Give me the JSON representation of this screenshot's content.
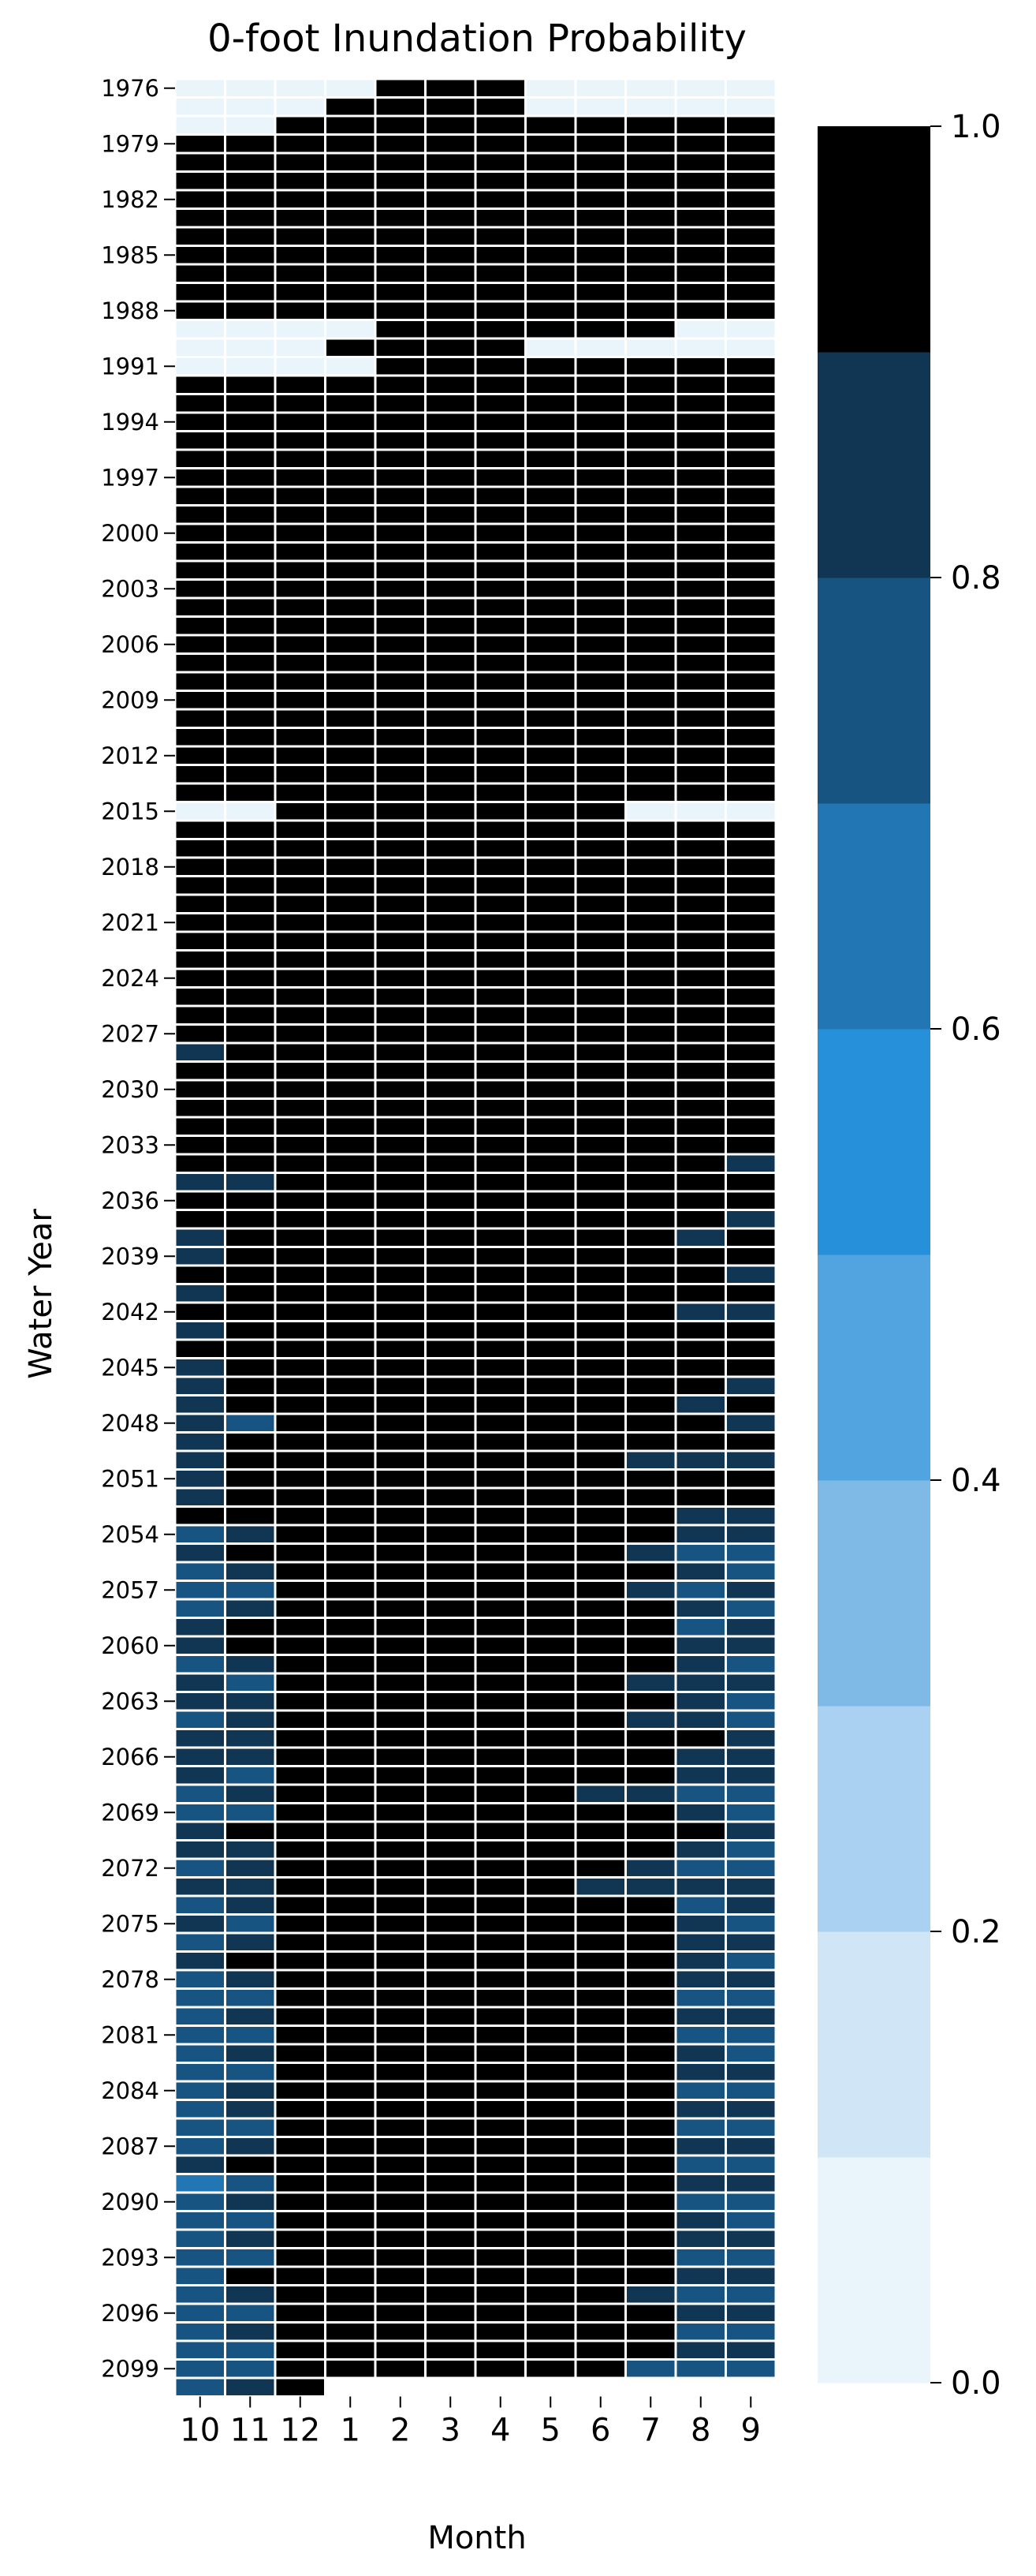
{
  "chart_data": {
    "type": "heatmap",
    "title": "0-foot Inundation Probability",
    "xlabel": "Month",
    "ylabel": "Water Year",
    "x_categories": [
      "10",
      "11",
      "12",
      "1",
      "2",
      "3",
      "4",
      "5",
      "6",
      "7",
      "8",
      "9"
    ],
    "y_first_year": 1976,
    "y_last_year": 2099,
    "y_tick_labels": [
      "1976",
      "1979",
      "1982",
      "1985",
      "1988",
      "1991",
      "1994",
      "1997",
      "2000",
      "2003",
      "2006",
      "2009",
      "2012",
      "2015",
      "2018",
      "2021",
      "2024",
      "2027",
      "2030",
      "2033",
      "2036",
      "2039",
      "2042",
      "2045",
      "2048",
      "2051",
      "2054",
      "2057",
      "2060",
      "2063",
      "2066",
      "2069",
      "2072",
      "2075",
      "2078",
      "2081",
      "2084",
      "2087",
      "2090",
      "2093",
      "2096",
      "2099"
    ],
    "colorbar": {
      "range": [
        0.0,
        1.0
      ],
      "tick_labels": [
        "0.0",
        "0.2",
        "0.4",
        "0.6",
        "0.8",
        "1.0"
      ],
      "bin_colors": [
        "#eaf4fb",
        "#d0e6f6",
        "#aad0f2",
        "#7fbae6",
        "#52a4e0",
        "#2790da",
        "#2376b4",
        "#185482",
        "#113654",
        "#000000"
      ]
    },
    "default_value": 1.0,
    "overrides": {
      "1976": {
        "10": 0.0,
        "11": 0.0,
        "12": 0.0,
        "1": 0.0,
        "5": 0.0,
        "6": 0.0,
        "7": 0.0,
        "8": 0.0,
        "9": 0.0
      },
      "1977": {
        "10": 0.0,
        "11": 0.0,
        "12": 0.0,
        "5": 0.0,
        "6": 0.0,
        "7": 0.0,
        "8": 0.0,
        "9": 0.0
      },
      "1978": {
        "10": 0.0,
        "11": 0.0
      },
      "1989": {
        "10": 0.0,
        "11": 0.0,
        "12": 0.0,
        "1": 0.0,
        "8": 0.0,
        "9": 0.0
      },
      "1990": {
        "10": 0.0,
        "11": 0.0,
        "12": 0.0,
        "5": 0.0,
        "6": 0.0,
        "7": 0.0,
        "8": 0.0,
        "9": 0.0
      },
      "1991": {
        "10": 0.0,
        "11": 0.0,
        "12": 0.0,
        "1": 0.0
      },
      "2015": {
        "10": 0.0,
        "11": 0.0,
        "7": 0.0,
        "8": 0.0,
        "9": 0.0
      },
      "2028": {
        "10": 0.85
      },
      "2034": {
        "9": 0.85
      },
      "2035": {
        "10": 0.85,
        "11": 0.85
      },
      "2037": {
        "9": 0.85
      },
      "2038": {
        "10": 0.85,
        "8": 0.85
      },
      "2039": {
        "10": 0.85
      },
      "2040": {
        "9": 0.85
      },
      "2041": {
        "10": 0.85
      },
      "2042": {
        "8": 0.85,
        "9": 0.85
      },
      "2043": {
        "10": 0.85
      },
      "2045": {
        "10": 0.85
      },
      "2046": {
        "10": 0.85,
        "9": 0.85
      },
      "2047": {
        "10": 0.85,
        "8": 0.85
      },
      "2048": {
        "10": 0.85,
        "11": 0.75,
        "9": 0.85
      },
      "2049": {
        "10": 0.85
      },
      "2050": {
        "10": 0.85,
        "7": 0.85,
        "8": 0.85,
        "9": 0.85
      },
      "2051": {
        "10": 0.85
      },
      "2052": {
        "10": 0.85
      },
      "2053": {
        "8": 0.85,
        "9": 0.85
      },
      "2054": {
        "10": 0.75,
        "11": 0.85,
        "8": 0.85,
        "9": 0.85
      },
      "2055": {
        "10": 0.85,
        "7": 0.85,
        "8": 0.75,
        "9": 0.75
      },
      "2056": {
        "10": 0.75,
        "11": 0.85,
        "8": 0.85,
        "9": 0.75
      },
      "2057": {
        "10": 0.75,
        "11": 0.75,
        "7": 0.85,
        "8": 0.75,
        "9": 0.85
      },
      "2058": {
        "10": 0.75,
        "11": 0.85,
        "8": 0.85,
        "9": 0.75
      },
      "2059": {
        "10": 0.85,
        "8": 0.75,
        "9": 0.85
      },
      "2060": {
        "10": 0.85,
        "8": 0.85,
        "9": 0.85
      },
      "2061": {
        "10": 0.75,
        "11": 0.85,
        "8": 0.85,
        "9": 0.75
      },
      "2062": {
        "10": 0.85,
        "11": 0.75,
        "7": 0.85,
        "8": 0.85,
        "9": 0.85
      },
      "2063": {
        "10": 0.85,
        "11": 0.85,
        "8": 0.85,
        "9": 0.75
      },
      "2064": {
        "10": 0.75,
        "11": 0.85,
        "7": 0.85,
        "8": 0.85,
        "9": 0.75
      },
      "2065": {
        "10": 0.85,
        "11": 0.85,
        "9": 0.85
      },
      "2066": {
        "10": 0.85,
        "11": 0.85,
        "8": 0.85,
        "9": 0.85
      },
      "2067": {
        "10": 0.85,
        "11": 0.75,
        "8": 0.85,
        "9": 0.85
      },
      "2068": {
        "10": 0.75,
        "11": 0.85,
        "6": 0.85,
        "7": 0.85,
        "8": 0.75,
        "9": 0.75
      },
      "2069": {
        "10": 0.75,
        "11": 0.75,
        "8": 0.85,
        "9": 0.75
      },
      "2070": {
        "10": 0.85,
        "9": 0.85
      },
      "2071": {
        "10": 0.85,
        "11": 0.85,
        "8": 0.85,
        "9": 0.75
      },
      "2072": {
        "10": 0.75,
        "11": 0.85,
        "7": 0.85,
        "8": 0.75,
        "9": 0.75
      },
      "2073": {
        "10": 0.85,
        "11": 0.85,
        "6": 0.85,
        "7": 0.85,
        "8": 0.85,
        "9": 0.85
      },
      "2074": {
        "10": 0.75,
        "11": 0.85,
        "8": 0.75,
        "9": 0.85
      },
      "2075": {
        "10": 0.85,
        "11": 0.75,
        "8": 0.85,
        "9": 0.75
      },
      "2076": {
        "10": 0.75,
        "11": 0.85,
        "8": 0.85,
        "9": 0.85
      },
      "2077": {
        "10": 0.85,
        "8": 0.85,
        "9": 0.75
      },
      "2078": {
        "10": 0.75,
        "11": 0.85,
        "8": 0.85,
        "9": 0.85
      },
      "2079": {
        "10": 0.75,
        "11": 0.75,
        "8": 0.75,
        "9": 0.75
      },
      "2080": {
        "10": 0.75,
        "11": 0.85,
        "8": 0.85,
        "9": 0.85
      },
      "2081": {
        "10": 0.75,
        "11": 0.75,
        "8": 0.75,
        "9": 0.75
      },
      "2082": {
        "10": 0.75,
        "11": 0.85,
        "8": 0.85,
        "9": 0.75
      },
      "2083": {
        "10": 0.75,
        "11": 0.75,
        "8": 0.85,
        "9": 0.85
      },
      "2084": {
        "10": 0.75,
        "11": 0.85,
        "8": 0.75,
        "9": 0.75
      },
      "2085": {
        "10": 0.75,
        "11": 0.85,
        "8": 0.85,
        "9": 0.85
      },
      "2086": {
        "10": 0.75,
        "11": 0.75,
        "8": 0.75,
        "9": 0.75
      },
      "2087": {
        "10": 0.75,
        "11": 0.85,
        "8": 0.85,
        "9": 0.85
      },
      "2088": {
        "10": 0.85,
        "8": 0.75,
        "9": 0.75
      },
      "2089": {
        "10": 0.65,
        "11": 0.75,
        "8": 0.85,
        "9": 0.85
      },
      "2090": {
        "10": 0.75,
        "11": 0.85,
        "8": 0.75,
        "9": 0.75
      },
      "2091": {
        "10": 0.75,
        "11": 0.75,
        "8": 0.85,
        "9": 0.75
      },
      "2092": {
        "10": 0.75,
        "11": 0.85,
        "8": 0.85,
        "9": 0.85
      },
      "2093": {
        "10": 0.75,
        "11": 0.75,
        "8": 0.75,
        "9": 0.75
      },
      "2094": {
        "10": 0.75,
        "8": 0.85,
        "9": 0.85
      },
      "2095": {
        "10": 0.75,
        "11": 0.85,
        "7": 0.85,
        "8": 0.75,
        "9": 0.75
      },
      "2096": {
        "10": 0.75,
        "11": 0.75,
        "8": 0.85,
        "9": 0.85
      },
      "2097": {
        "10": 0.75,
        "11": 0.85,
        "8": 0.75,
        "9": 0.75
      },
      "2098": {
        "10": 0.75,
        "11": 0.75,
        "8": 0.85,
        "9": 0.85
      },
      "2099": {
        "10": 0.75,
        "11": 0.75,
        "7": 0.75,
        "8": 0.75,
        "9": 0.75
      },
      "2100": {
        "10": 0.75,
        "11": 0.85
      }
    },
    "partial_final_year": {
      "year": 2100,
      "months": [
        "10",
        "11",
        "12"
      ]
    }
  }
}
